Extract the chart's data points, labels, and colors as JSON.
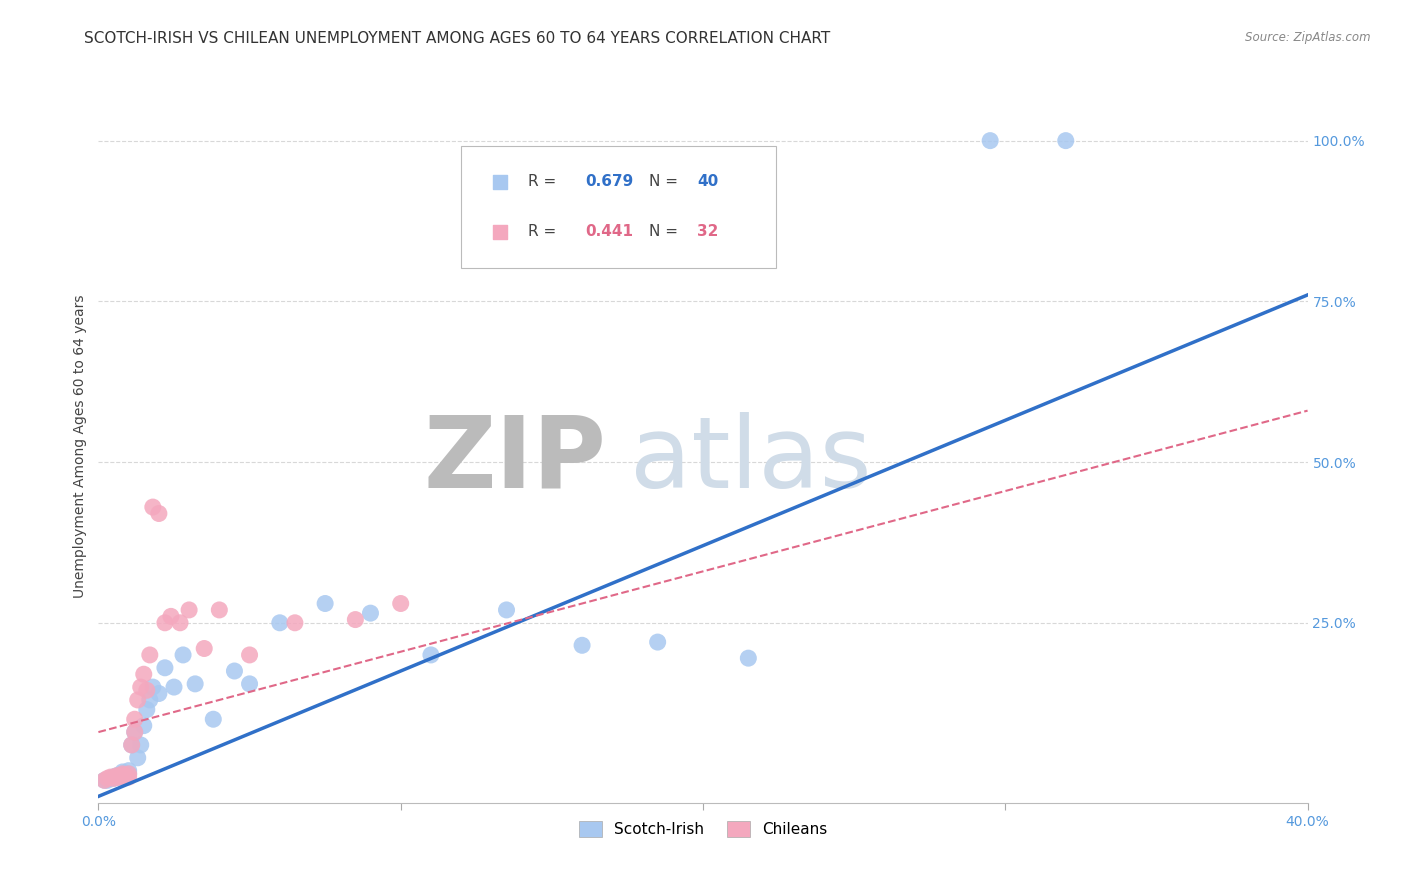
{
  "title": "SCOTCH-IRISH VS CHILEAN UNEMPLOYMENT AMONG AGES 60 TO 64 YEARS CORRELATION CHART",
  "source": "Source: ZipAtlas.com",
  "ylabel": "Unemployment Among Ages 60 to 64 years",
  "xlim": [
    0.0,
    0.4
  ],
  "ylim": [
    -0.03,
    1.08
  ],
  "x_ticks": [
    0.0,
    0.1,
    0.2,
    0.3,
    0.4
  ],
  "x_tick_labels": [
    "0.0%",
    "",
    "",
    "",
    "40.0%"
  ],
  "y_ticks": [
    0.25,
    0.5,
    0.75,
    1.0
  ],
  "y_tick_labels": [
    "25.0%",
    "50.0%",
    "75.0%",
    "100.0%"
  ],
  "scotch_irish_color": "#A8C8F0",
  "chilean_color": "#F4A8BE",
  "scotch_irish_line_color": "#3070C8",
  "chilean_line_color": "#E06888",
  "grid_color": "#C8C8C8",
  "watermark_color": "#D0DCE8",
  "scotch_irish_x": [
    0.002,
    0.003,
    0.004,
    0.005,
    0.005,
    0.006,
    0.006,
    0.007,
    0.007,
    0.008,
    0.008,
    0.009,
    0.01,
    0.01,
    0.011,
    0.012,
    0.013,
    0.014,
    0.015,
    0.016,
    0.017,
    0.018,
    0.02,
    0.022,
    0.025,
    0.028,
    0.032,
    0.038,
    0.045,
    0.05,
    0.06,
    0.075,
    0.09,
    0.11,
    0.135,
    0.16,
    0.185,
    0.215,
    0.295,
    0.32
  ],
  "scotch_irish_y": [
    0.005,
    0.005,
    0.008,
    0.01,
    0.008,
    0.01,
    0.012,
    0.01,
    0.012,
    0.015,
    0.018,
    0.01,
    0.02,
    0.015,
    0.06,
    0.08,
    0.04,
    0.06,
    0.09,
    0.115,
    0.13,
    0.15,
    0.14,
    0.18,
    0.15,
    0.2,
    0.155,
    0.1,
    0.175,
    0.155,
    0.25,
    0.28,
    0.265,
    0.2,
    0.27,
    0.215,
    0.22,
    0.195,
    1.0,
    1.0
  ],
  "chilean_x": [
    0.002,
    0.003,
    0.004,
    0.005,
    0.006,
    0.006,
    0.007,
    0.008,
    0.008,
    0.009,
    0.01,
    0.01,
    0.011,
    0.012,
    0.012,
    0.013,
    0.014,
    0.015,
    0.016,
    0.017,
    0.018,
    0.02,
    0.022,
    0.024,
    0.027,
    0.03,
    0.035,
    0.04,
    0.05,
    0.065,
    0.085,
    0.1
  ],
  "chilean_y": [
    0.005,
    0.008,
    0.01,
    0.008,
    0.01,
    0.012,
    0.01,
    0.015,
    0.012,
    0.01,
    0.015,
    0.01,
    0.06,
    0.08,
    0.1,
    0.13,
    0.15,
    0.17,
    0.145,
    0.2,
    0.43,
    0.42,
    0.25,
    0.26,
    0.25,
    0.27,
    0.21,
    0.27,
    0.2,
    0.25,
    0.255,
    0.28
  ],
  "si_line_x0": 0.0,
  "si_line_y0": -0.02,
  "si_line_x1": 0.4,
  "si_line_y1": 0.76,
  "ch_line_x0": 0.0,
  "ch_line_y0": 0.08,
  "ch_line_x1": 0.4,
  "ch_line_y1": 0.58,
  "background_color": "#FFFFFF",
  "title_fontsize": 11,
  "axis_label_fontsize": 10,
  "tick_fontsize": 10
}
